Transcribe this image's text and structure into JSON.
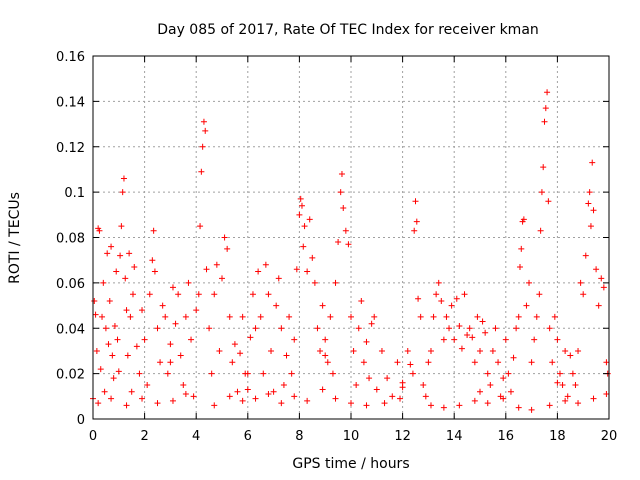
{
  "chart_data": {
    "type": "scatter",
    "title": "Day 085 of 2017, Rate Of TEC Index for receiver kman",
    "xlabel": "GPS time / hours",
    "ylabel": "ROTI / TECUs",
    "xlim": [
      0,
      20
    ],
    "ylim": [
      0,
      0.16
    ],
    "xticks": [
      "0",
      "2",
      "4",
      "6",
      "8",
      "10",
      "12",
      "14",
      "16",
      "18",
      "20"
    ],
    "yticks": [
      "0",
      "0.02",
      "0.04",
      "0.06",
      "0.08",
      "0.1",
      "0.12",
      "0.14",
      "0.16"
    ],
    "grid": true,
    "marker": "+",
    "color": "#ff0000",
    "series": [
      {
        "points": [
          [
            0.0,
            0.009
          ],
          [
            0.05,
            0.052
          ],
          [
            0.1,
            0.046
          ],
          [
            0.15,
            0.03
          ],
          [
            0.2,
            0.084
          ],
          [
            0.25,
            0.083
          ],
          [
            0.3,
            0.022
          ],
          [
            0.35,
            0.045
          ],
          [
            0.4,
            0.06
          ],
          [
            0.45,
            0.012
          ],
          [
            0.5,
            0.04
          ],
          [
            0.55,
            0.073
          ],
          [
            0.6,
            0.033
          ],
          [
            0.65,
            0.052
          ],
          [
            0.7,
            0.076
          ],
          [
            0.75,
            0.028
          ],
          [
            0.8,
            0.018
          ],
          [
            0.85,
            0.041
          ],
          [
            0.9,
            0.065
          ],
          [
            0.95,
            0.035
          ],
          [
            1.0,
            0.021
          ],
          [
            1.05,
            0.072
          ],
          [
            1.1,
            0.085
          ],
          [
            1.15,
            0.1
          ],
          [
            1.2,
            0.106
          ],
          [
            1.25,
            0.062
          ],
          [
            1.3,
            0.048
          ],
          [
            1.35,
            0.028
          ],
          [
            1.4,
            0.073
          ],
          [
            1.45,
            0.045
          ],
          [
            1.5,
            0.012
          ],
          [
            1.55,
            0.055
          ],
          [
            1.6,
            0.067
          ],
          [
            1.7,
            0.032
          ],
          [
            1.8,
            0.02
          ],
          [
            1.9,
            0.048
          ],
          [
            2.0,
            0.035
          ],
          [
            2.1,
            0.015
          ],
          [
            2.2,
            0.055
          ],
          [
            2.3,
            0.07
          ],
          [
            2.35,
            0.083
          ],
          [
            2.4,
            0.065
          ],
          [
            2.5,
            0.04
          ],
          [
            2.6,
            0.025
          ],
          [
            2.7,
            0.05
          ],
          [
            2.8,
            0.045
          ],
          [
            2.9,
            0.02
          ],
          [
            3.0,
            0.033
          ],
          [
            3.1,
            0.058
          ],
          [
            3.2,
            0.042
          ],
          [
            3.3,
            0.055
          ],
          [
            3.4,
            0.028
          ],
          [
            3.5,
            0.015
          ],
          [
            3.6,
            0.045
          ],
          [
            3.7,
            0.06
          ],
          [
            3.8,
            0.035
          ],
          [
            3.9,
            0.01
          ],
          [
            4.0,
            0.048
          ],
          [
            4.1,
            0.055
          ],
          [
            4.15,
            0.085
          ],
          [
            4.2,
            0.109
          ],
          [
            4.25,
            0.12
          ],
          [
            4.3,
            0.131
          ],
          [
            4.35,
            0.127
          ],
          [
            4.4,
            0.066
          ],
          [
            4.5,
            0.04
          ],
          [
            4.6,
            0.02
          ],
          [
            4.7,
            0.055
          ],
          [
            4.8,
            0.068
          ],
          [
            4.9,
            0.03
          ],
          [
            5.0,
            0.062
          ],
          [
            5.1,
            0.08
          ],
          [
            5.2,
            0.075
          ],
          [
            5.3,
            0.045
          ],
          [
            5.4,
            0.025
          ],
          [
            5.5,
            0.033
          ],
          [
            5.6,
            0.012
          ],
          [
            5.7,
            0.029
          ],
          [
            5.8,
            0.045
          ],
          [
            5.9,
            0.02
          ],
          [
            6.0,
            0.013
          ],
          [
            6.1,
            0.036
          ],
          [
            6.2,
            0.055
          ],
          [
            6.3,
            0.04
          ],
          [
            6.4,
            0.065
          ],
          [
            6.5,
            0.045
          ],
          [
            6.6,
            0.02
          ],
          [
            6.7,
            0.068
          ],
          [
            6.8,
            0.055
          ],
          [
            6.9,
            0.03
          ],
          [
            7.0,
            0.012
          ],
          [
            7.1,
            0.05
          ],
          [
            7.2,
            0.062
          ],
          [
            7.3,
            0.04
          ],
          [
            7.4,
            0.015
          ],
          [
            7.5,
            0.028
          ],
          [
            7.6,
            0.045
          ],
          [
            7.7,
            0.02
          ],
          [
            7.8,
            0.035
          ],
          [
            7.9,
            0.066
          ],
          [
            8.0,
            0.09
          ],
          [
            8.05,
            0.097
          ],
          [
            8.1,
            0.094
          ],
          [
            8.15,
            0.076
          ],
          [
            8.2,
            0.085
          ],
          [
            8.3,
            0.065
          ],
          [
            8.4,
            0.088
          ],
          [
            8.5,
            0.071
          ],
          [
            8.6,
            0.06
          ],
          [
            8.7,
            0.04
          ],
          [
            8.8,
            0.03
          ],
          [
            8.9,
            0.05
          ],
          [
            9.0,
            0.035
          ],
          [
            9.1,
            0.025
          ],
          [
            9.2,
            0.045
          ],
          [
            9.3,
            0.02
          ],
          [
            9.4,
            0.06
          ],
          [
            9.5,
            0.078
          ],
          [
            9.6,
            0.1
          ],
          [
            9.65,
            0.108
          ],
          [
            9.7,
            0.093
          ],
          [
            9.8,
            0.083
          ],
          [
            9.9,
            0.077
          ],
          [
            10.0,
            0.045
          ],
          [
            10.1,
            0.03
          ],
          [
            10.2,
            0.015
          ],
          [
            10.3,
            0.04
          ],
          [
            10.4,
            0.052
          ],
          [
            10.5,
            0.025
          ],
          [
            10.6,
            0.034
          ],
          [
            10.7,
            0.018
          ],
          [
            10.8,
            0.042
          ],
          [
            10.9,
            0.045
          ],
          [
            11.0,
            0.013
          ],
          [
            11.2,
            0.03
          ],
          [
            11.4,
            0.018
          ],
          [
            11.6,
            0.01
          ],
          [
            11.8,
            0.025
          ],
          [
            12.0,
            0.016
          ],
          [
            12.2,
            0.03
          ],
          [
            12.3,
            0.024
          ],
          [
            12.4,
            0.02
          ],
          [
            12.45,
            0.083
          ],
          [
            12.5,
            0.096
          ],
          [
            12.55,
            0.087
          ],
          [
            12.6,
            0.053
          ],
          [
            12.7,
            0.045
          ],
          [
            12.8,
            0.015
          ],
          [
            12.9,
            0.01
          ],
          [
            13.0,
            0.025
          ],
          [
            13.1,
            0.03
          ],
          [
            13.2,
            0.045
          ],
          [
            13.3,
            0.055
          ],
          [
            13.4,
            0.06
          ],
          [
            13.5,
            0.052
          ],
          [
            13.6,
            0.035
          ],
          [
            13.7,
            0.045
          ],
          [
            13.8,
            0.04
          ],
          [
            13.9,
            0.05
          ],
          [
            14.0,
            0.035
          ],
          [
            14.1,
            0.053
          ],
          [
            14.2,
            0.041
          ],
          [
            14.3,
            0.031
          ],
          [
            14.4,
            0.055
          ],
          [
            14.5,
            0.037
          ],
          [
            14.6,
            0.04
          ],
          [
            14.7,
            0.036
          ],
          [
            14.8,
            0.025
          ],
          [
            14.9,
            0.045
          ],
          [
            15.0,
            0.03
          ],
          [
            15.1,
            0.043
          ],
          [
            15.2,
            0.038
          ],
          [
            15.3,
            0.02
          ],
          [
            15.4,
            0.015
          ],
          [
            15.5,
            0.03
          ],
          [
            15.6,
            0.04
          ],
          [
            15.7,
            0.025
          ],
          [
            15.8,
            0.01
          ],
          [
            15.9,
            0.018
          ],
          [
            16.0,
            0.035
          ],
          [
            16.1,
            0.02
          ],
          [
            16.2,
            0.012
          ],
          [
            16.3,
            0.027
          ],
          [
            16.4,
            0.04
          ],
          [
            16.5,
            0.045
          ],
          [
            16.55,
            0.067
          ],
          [
            16.6,
            0.075
          ],
          [
            16.65,
            0.087
          ],
          [
            16.7,
            0.088
          ],
          [
            16.8,
            0.05
          ],
          [
            16.9,
            0.06
          ],
          [
            17.0,
            0.025
          ],
          [
            17.1,
            0.035
          ],
          [
            17.2,
            0.045
          ],
          [
            17.3,
            0.055
          ],
          [
            17.35,
            0.083
          ],
          [
            17.4,
            0.1
          ],
          [
            17.45,
            0.111
          ],
          [
            17.5,
            0.131
          ],
          [
            17.55,
            0.137
          ],
          [
            17.6,
            0.144
          ],
          [
            17.65,
            0.096
          ],
          [
            17.7,
            0.04
          ],
          [
            17.8,
            0.025
          ],
          [
            17.9,
            0.045
          ],
          [
            18.0,
            0.035
          ],
          [
            18.1,
            0.02
          ],
          [
            18.2,
            0.015
          ],
          [
            18.3,
            0.03
          ],
          [
            18.4,
            0.01
          ],
          [
            18.5,
            0.028
          ],
          [
            18.6,
            0.02
          ],
          [
            18.7,
            0.015
          ],
          [
            18.8,
            0.03
          ],
          [
            18.9,
            0.06
          ],
          [
            19.0,
            0.055
          ],
          [
            19.1,
            0.072
          ],
          [
            19.2,
            0.095
          ],
          [
            19.25,
            0.1
          ],
          [
            19.3,
            0.085
          ],
          [
            19.35,
            0.113
          ],
          [
            19.4,
            0.092
          ],
          [
            19.5,
            0.066
          ],
          [
            19.6,
            0.05
          ],
          [
            19.7,
            0.062
          ],
          [
            19.8,
            0.058
          ],
          [
            19.9,
            0.025
          ],
          [
            19.95,
            0.02
          ],
          [
            0.2,
            0.007
          ],
          [
            0.7,
            0.009
          ],
          [
            1.3,
            0.006
          ],
          [
            1.9,
            0.009
          ],
          [
            2.5,
            0.007
          ],
          [
            3.1,
            0.008
          ],
          [
            3.6,
            0.011
          ],
          [
            4.7,
            0.006
          ],
          [
            5.3,
            0.01
          ],
          [
            5.8,
            0.008
          ],
          [
            6.3,
            0.009
          ],
          [
            6.8,
            0.011
          ],
          [
            7.3,
            0.007
          ],
          [
            7.8,
            0.01
          ],
          [
            8.3,
            0.008
          ],
          [
            8.9,
            0.013
          ],
          [
            9.4,
            0.009
          ],
          [
            10.0,
            0.007
          ],
          [
            10.6,
            0.006
          ],
          [
            11.3,
            0.007
          ],
          [
            11.9,
            0.009
          ],
          [
            13.1,
            0.006
          ],
          [
            13.6,
            0.005
          ],
          [
            14.2,
            0.006
          ],
          [
            14.8,
            0.008
          ],
          [
            15.3,
            0.007
          ],
          [
            15.9,
            0.009
          ],
          [
            16.5,
            0.005
          ],
          [
            17.0,
            0.004
          ],
          [
            17.7,
            0.006
          ],
          [
            18.3,
            0.008
          ],
          [
            18.8,
            0.007
          ],
          [
            19.4,
            0.009
          ],
          [
            19.9,
            0.011
          ],
          [
            3.0,
            0.025
          ],
          [
            6.0,
            0.02
          ],
          [
            9.0,
            0.028
          ],
          [
            12.0,
            0.014
          ],
          [
            15.0,
            0.012
          ],
          [
            18.0,
            0.016
          ]
        ]
      }
    ]
  }
}
